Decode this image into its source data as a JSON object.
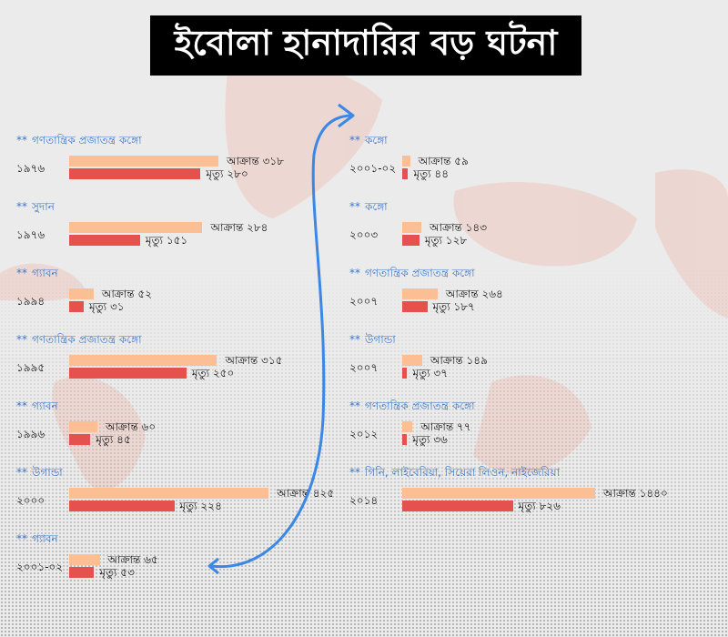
{
  "title": "ইবোলা হানাদারির বড় ঘটনা",
  "chart_data": {
    "type": "bar",
    "series_names": {
      "infected": "আক্রান্ত",
      "deaths": "মৃত্যু"
    },
    "colors": {
      "infected": "#fbbf93",
      "deaths": "#e5524e",
      "heading": "#3a78c9",
      "arrow": "#3a87e6"
    },
    "columns": [
      [
        {
          "country": "গণতান্ত্রিক প্রজাতন্ত্র কঙ্গো",
          "year": "১৯৭৬",
          "infected": 318,
          "deaths": 280,
          "infected_text": "৩১৮",
          "deaths_text": "২৮০"
        },
        {
          "country": "সুদান",
          "year": "১৯৭৬",
          "infected": 284,
          "deaths": 151,
          "infected_text": "২৮৪",
          "deaths_text": "১৫১"
        },
        {
          "country": "গ্যাবন",
          "year": "১৯৯৪",
          "infected": 52,
          "deaths": 31,
          "infected_text": "৫২",
          "deaths_text": "৩১"
        },
        {
          "country": "গণতান্ত্রিক প্রজাতন্ত্র কঙ্গো",
          "year": "১৯৯৫",
          "infected": 315,
          "deaths": 250,
          "infected_text": "৩১৫",
          "deaths_text": "২৫০"
        },
        {
          "country": "গ্যাবন",
          "year": "১৯৯৬",
          "infected": 60,
          "deaths": 45,
          "infected_text": "৬০",
          "deaths_text": "৪৫"
        },
        {
          "country": "উগান্ডা",
          "year": "২০০০",
          "infected": 425,
          "deaths": 224,
          "infected_text": "৪২৫",
          "deaths_text": "২২৪"
        },
        {
          "country": "গ্যাবন",
          "year": "২০০১-০২",
          "infected": 65,
          "deaths": 53,
          "infected_text": "৬৫",
          "deaths_text": "৫৩"
        }
      ],
      [
        {
          "country": "কঙ্গো",
          "year": "২০০১-০২",
          "infected": 59,
          "deaths": 44,
          "infected_text": "৫৯",
          "deaths_text": "৪৪"
        },
        {
          "country": "কঙ্গো",
          "year": "২০০৩",
          "infected": 143,
          "deaths": 128,
          "infected_text": "১৪৩",
          "deaths_text": "১২৮"
        },
        {
          "country": "গণতান্ত্রিক প্রজাতন্ত্র কঙ্গো",
          "year": "২০০৭",
          "infected": 264,
          "deaths": 187,
          "infected_text": "২৬৪",
          "deaths_text": "১৮৭"
        },
        {
          "country": "উগান্ডা",
          "year": "২০০৭",
          "infected": 149,
          "deaths": 37,
          "infected_text": "১৪৯",
          "deaths_text": "৩৭"
        },
        {
          "country": "গণতান্ত্রিক প্রজাতন্ত্র কঙ্গো",
          "year": "২০১২",
          "infected": 77,
          "deaths": 36,
          "infected_text": "৭৭",
          "deaths_text": "৩৬"
        },
        {
          "country": "গিনি, লাইবেরিয়া, সিয়েরা লিওন, নাইজেরিয়া",
          "year": "২০১৪",
          "infected": 1440,
          "deaths": 826,
          "infected_text": "১৪৪০",
          "deaths_text": "৮২৬"
        }
      ]
    ]
  }
}
